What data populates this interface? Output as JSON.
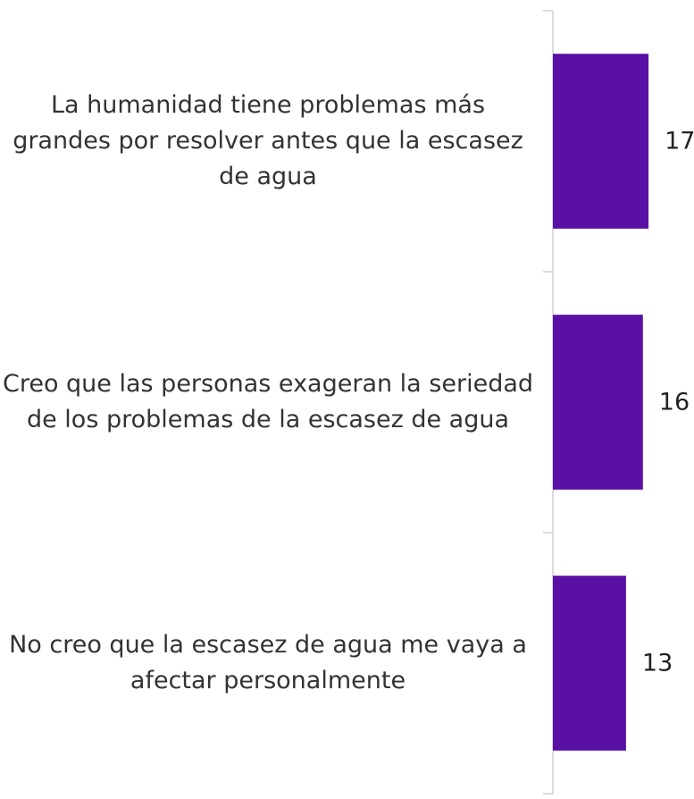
{
  "chart_data": {
    "type": "bar",
    "orientation": "horizontal",
    "categories": [
      "La humanidad tiene problemas más grandes por resolver antes que la escasez de agua",
      "Creo que las personas exageran la seriedad de los problemas de la escasez de agua",
      "No creo que la escasez de agua me vaya a afectar personalmente"
    ],
    "values": [
      17,
      16,
      13
    ],
    "color": "#5a10a5"
  }
}
